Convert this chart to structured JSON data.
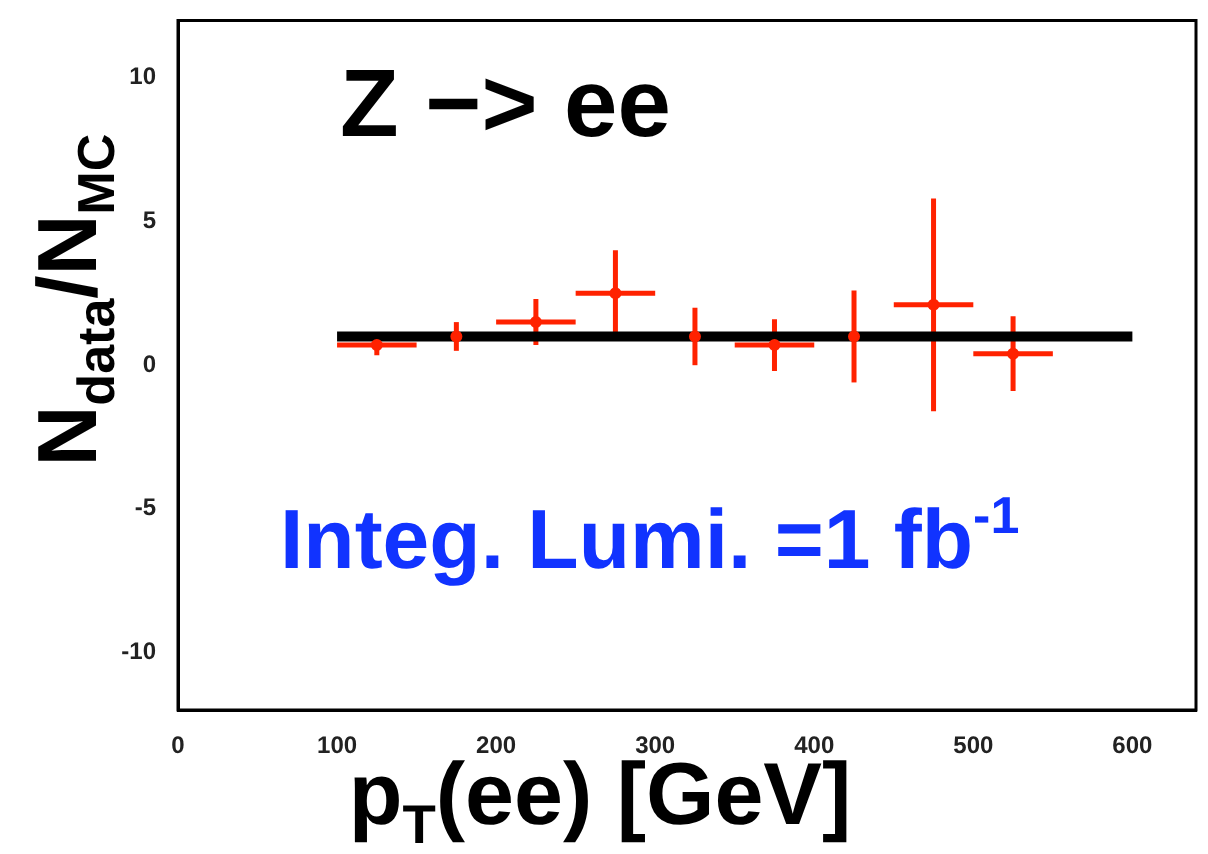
{
  "chart_data": {
    "type": "scatter",
    "xlabel": "p$_{T}$(ee) [GeV]",
    "ylabel": "N$_{data}$/N$_{MC}$",
    "annotations": [
      "Z −> ee",
      "Integ. Lumi. =1 fb$^{-1}$"
    ],
    "grid": false,
    "xlim": [
      0,
      640
    ],
    "xticks": [
      0,
      100,
      200,
      300,
      400,
      500,
      600
    ],
    "ylim": [
      -12,
      12
    ],
    "yticks": [
      -10,
      -5,
      0,
      5,
      10
    ],
    "series": [
      {
        "type": "scatter",
        "color": "#ff2200",
        "x": [
          125,
          175,
          225,
          275,
          325,
          375,
          425,
          475,
          525
        ],
        "values": [
          0.7,
          1.0,
          1.5,
          2.5,
          1.0,
          0.7,
          1.0,
          2.1,
          0.4
        ],
        "errors": [
          0.35,
          0.5,
          0.8,
          1.5,
          1.0,
          0.9,
          1.6,
          3.7,
          1.3
        ],
        "xerrors": [
          25,
          null,
          25,
          25,
          null,
          25,
          null,
          25,
          25
        ]
      },
      {
        "type": "line",
        "color": "#000000",
        "x": [
          100,
          600
        ],
        "values": [
          1,
          1
        ]
      }
    ]
  }
}
